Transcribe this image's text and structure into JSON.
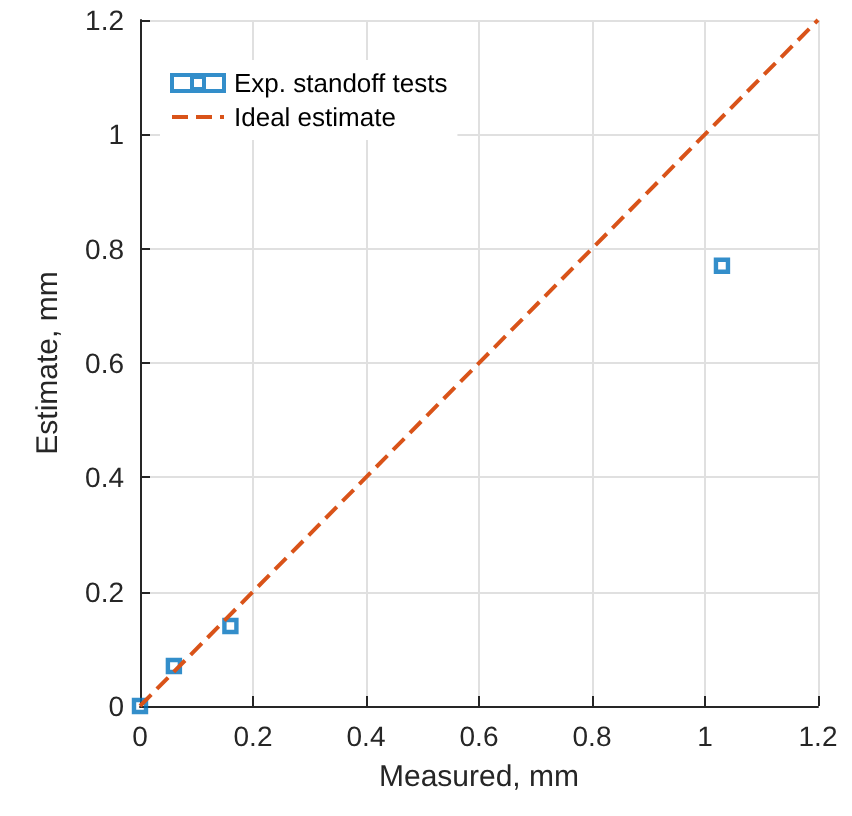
{
  "chart_data": {
    "type": "scatter",
    "xlabel": "Measured, mm",
    "ylabel": "Estimate, mm",
    "xlim": [
      0,
      1.2
    ],
    "ylim": [
      0,
      1.2
    ],
    "xticks": [
      0,
      0.2,
      0.4,
      0.6,
      0.8,
      1,
      1.2
    ],
    "yticks": [
      0,
      0.2,
      0.4,
      0.6,
      0.8,
      1,
      1.2
    ],
    "grid": true,
    "legend": "top left",
    "series": [
      {
        "name": "Exp. standoff tests",
        "color": "#0072bd",
        "marker": "square",
        "x": [
          0,
          0.06,
          0.16,
          1.03
        ],
        "values": [
          0,
          0.07,
          0.14,
          0.77
        ]
      },
      {
        "name": "Ideal estimate",
        "type": "line",
        "color": "#d95319",
        "line_style": "dashed",
        "x": [
          0,
          1.2
        ],
        "values": [
          0,
          1.2
        ]
      }
    ]
  }
}
